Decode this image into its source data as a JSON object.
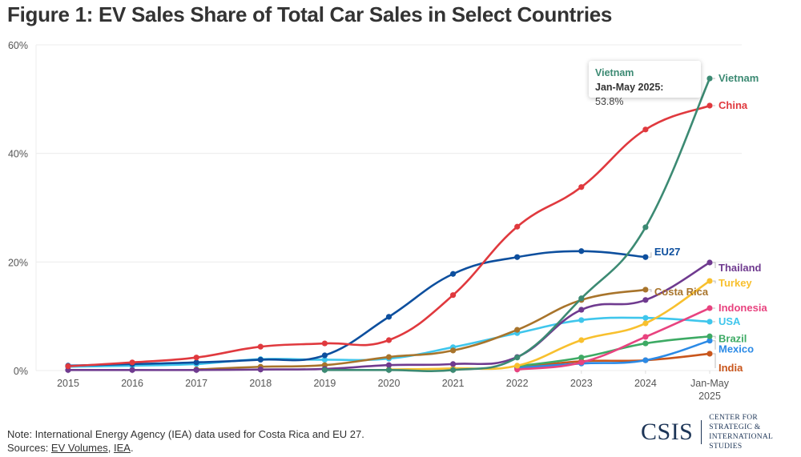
{
  "title": "Figure 1: EV Sales Share of Total Car Sales in Select Countries",
  "tooltip": {
    "series": "Vietnam",
    "key": "Jan-May 2025:",
    "value": "53.8%"
  },
  "footer": {
    "note": "Note: International Energy Agency (IEA) data used for Costa Rica and EU 27.",
    "sources_prefix": "Sources: ",
    "source_links": [
      "EV Volumes",
      "IEA"
    ],
    "separator": ", ",
    "suffix": "."
  },
  "logo": {
    "mark": "CSIS",
    "line1": "CENTER FOR STRATEGIC &",
    "line2": "INTERNATIONAL STUDIES"
  },
  "chart_data": {
    "type": "line",
    "title": "Figure 1: EV Sales Share of Total Car Sales in Select Countries",
    "xlabel": "",
    "ylabel": "",
    "categories": [
      "2015",
      "2016",
      "2017",
      "2018",
      "2019",
      "2020",
      "2021",
      "2022",
      "2023",
      "2024",
      "Jan-May 2025"
    ],
    "x_tick_labels": [
      [
        "2015"
      ],
      [
        "2016"
      ],
      [
        "2017"
      ],
      [
        "2018"
      ],
      [
        "2019"
      ],
      [
        "2020"
      ],
      [
        "2021"
      ],
      [
        "2022"
      ],
      [
        "2023"
      ],
      [
        "2024"
      ],
      [
        "Jan-May",
        "2025"
      ]
    ],
    "ylim": [
      0,
      60
    ],
    "y_ticks": [
      0,
      20,
      40,
      60
    ],
    "y_tick_labels": [
      "0%",
      "20%",
      "40%",
      "60%"
    ],
    "grid": true,
    "legend": "inline-right",
    "series": [
      {
        "name": "Vietnam",
        "color": "#3c8a73",
        "values": [
          null,
          null,
          null,
          null,
          0.1,
          0.1,
          0.1,
          2.4,
          13.3,
          26.4,
          53.8
        ]
      },
      {
        "name": "China",
        "color": "#e0393e",
        "values": [
          0.8,
          1.5,
          2.4,
          4.4,
          5.0,
          5.6,
          13.9,
          26.5,
          33.8,
          44.4,
          48.8
        ]
      },
      {
        "name": "EU27",
        "color": "#0d4f9e",
        "values": [
          0.9,
          1.2,
          1.5,
          2.0,
          2.8,
          9.9,
          17.8,
          20.9,
          22.0,
          20.9,
          null
        ]
      },
      {
        "name": "Thailand",
        "color": "#6f3a8f",
        "values": [
          0.1,
          0.1,
          0.1,
          0.2,
          0.3,
          1.0,
          1.2,
          2.5,
          11.2,
          13.0,
          19.9
        ]
      },
      {
        "name": "Turkey",
        "color": "#f8c02e",
        "values": [
          null,
          null,
          null,
          null,
          null,
          0.2,
          0.4,
          0.9,
          5.6,
          8.7,
          16.5
        ]
      },
      {
        "name": "Costa Rica",
        "color": "#a8742b",
        "values": [
          null,
          null,
          0.2,
          0.7,
          1.0,
          2.5,
          3.7,
          7.5,
          13.0,
          14.9,
          null
        ]
      },
      {
        "name": "Indonesia",
        "color": "#e8437f",
        "values": [
          null,
          null,
          null,
          null,
          null,
          null,
          null,
          0.2,
          1.5,
          6.2,
          11.5
        ]
      },
      {
        "name": "USA",
        "color": "#3fc6ec",
        "values": [
          0.7,
          0.9,
          1.2,
          2.1,
          2.0,
          2.2,
          4.3,
          6.9,
          9.3,
          9.7,
          9.0
        ]
      },
      {
        "name": "Brazil",
        "color": "#3daa64",
        "values": [
          null,
          null,
          null,
          null,
          null,
          null,
          null,
          0.8,
          2.4,
          5.0,
          6.3
        ]
      },
      {
        "name": "Mexico",
        "color": "#2b8ae6",
        "values": [
          null,
          null,
          null,
          null,
          null,
          null,
          null,
          0.5,
          1.3,
          1.9,
          5.5
        ]
      },
      {
        "name": "India",
        "color": "#c9561c",
        "values": [
          null,
          null,
          null,
          null,
          null,
          null,
          null,
          0.5,
          1.7,
          1.9,
          3.1
        ]
      }
    ],
    "annotations": [
      {
        "series": "Vietnam",
        "category": "Jan-May 2025",
        "text": "Vietnam Jan-May 2025: 53.8%"
      }
    ]
  }
}
